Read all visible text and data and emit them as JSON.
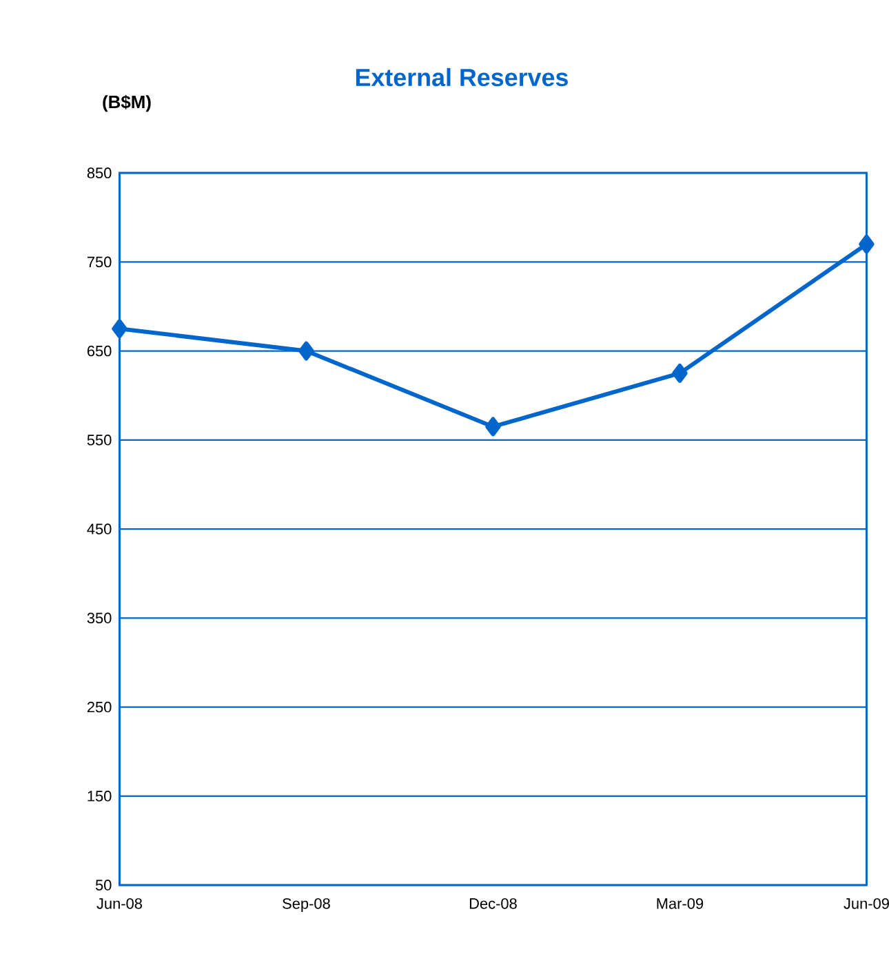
{
  "chart_data": {
    "type": "line",
    "title": "External Reserves",
    "ylabel": "(B$M)",
    "categories": [
      "Jun-08",
      "Sep-08",
      "Dec-08",
      "Mar-09",
      "Jun-09"
    ],
    "series": [
      {
        "color": "#0066cc",
        "values": [
          675,
          650,
          565,
          625,
          770
        ]
      }
    ],
    "ylim": [
      50,
      850
    ],
    "yticks": [
      50,
      150,
      250,
      350,
      450,
      550,
      650,
      750,
      850
    ],
    "grid": "y",
    "marker": "diamond",
    "line_style": "solid"
  }
}
